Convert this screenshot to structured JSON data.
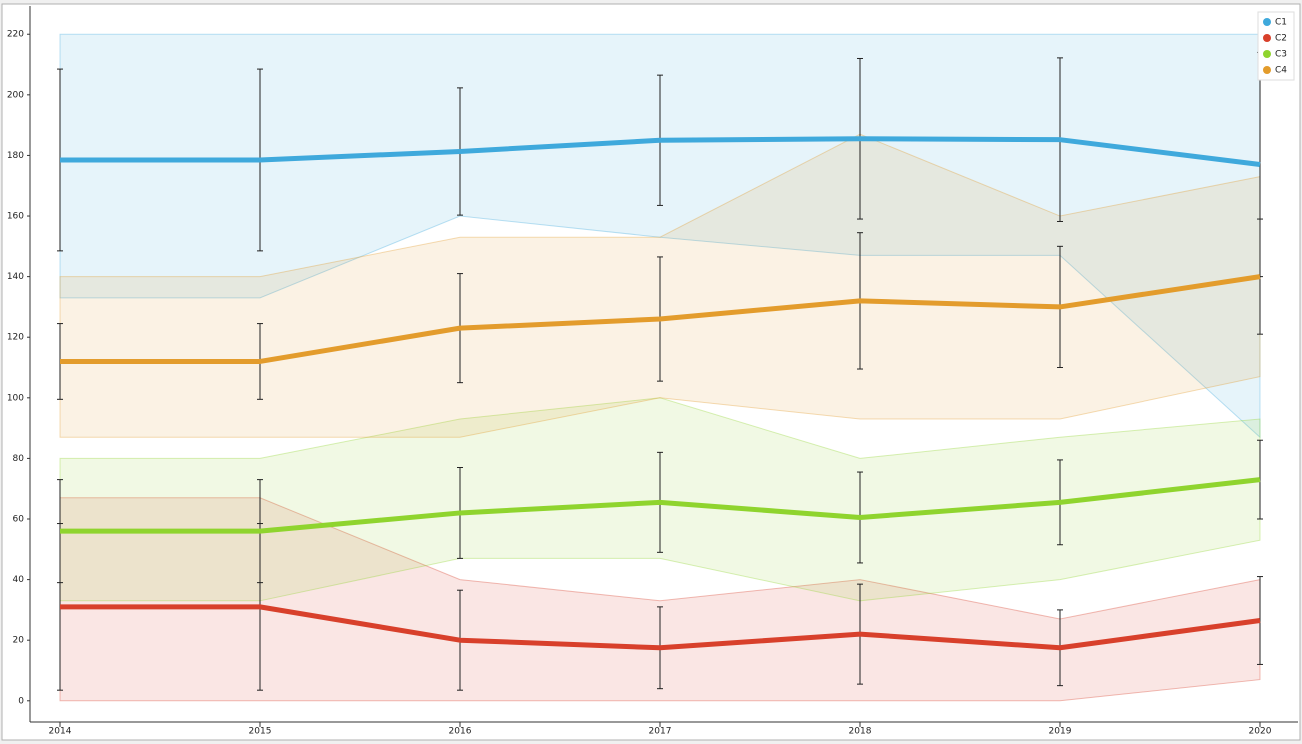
{
  "chart_data": {
    "type": "line",
    "x": [
      2014,
      2015,
      2016,
      2017,
      2018,
      2019,
      2020
    ],
    "xlim": [
      2013.85,
      2020.19
    ],
    "xticks": [
      2014,
      2015,
      2016,
      2017,
      2018,
      2019,
      2020
    ],
    "ylim": [
      -7,
      228
    ],
    "yticks": [
      0,
      20,
      40,
      60,
      80,
      100,
      120,
      140,
      160,
      180,
      200,
      220
    ],
    "legend": "upper right",
    "series": [
      {
        "name": "C1",
        "color": "#3fa9dc",
        "values": [
          178.5,
          178.5,
          181.3,
          185,
          185.5,
          185.2,
          177
        ],
        "errors": [
          30,
          30,
          21,
          21.5,
          26.5,
          27,
          37
        ],
        "band_low": [
          133,
          133,
          160,
          153,
          147,
          147,
          87
        ],
        "band_high": [
          220,
          220,
          220,
          220,
          220,
          220,
          220
        ]
      },
      {
        "name": "C2",
        "color": "#d8402b",
        "values": [
          31,
          31,
          20,
          17.5,
          22,
          17.5,
          26.5
        ],
        "errors": [
          27.5,
          27.5,
          16.5,
          13.5,
          16.5,
          12.5,
          14.5
        ],
        "band_low": [
          0,
          0,
          0,
          0,
          0,
          0,
          7
        ],
        "band_high": [
          67,
          67,
          40,
          33,
          40,
          27,
          40
        ]
      },
      {
        "name": "C3",
        "color": "#8fd42e",
        "values": [
          56,
          56,
          62,
          65.5,
          60.5,
          65.5,
          73
        ],
        "errors": [
          17,
          17,
          15,
          16.5,
          15,
          14,
          13
        ],
        "band_low": [
          33,
          33,
          47,
          47,
          33,
          40,
          53
        ],
        "band_high": [
          80,
          80,
          93,
          100,
          80,
          87,
          93
        ]
      },
      {
        "name": "C4",
        "color": "#e39c2c",
        "values": [
          112,
          112,
          123,
          126,
          132,
          130,
          140
        ],
        "errors": [
          12.5,
          12.5,
          18,
          20.5,
          22.5,
          20,
          19
        ],
        "band_low": [
          87,
          87,
          87,
          100,
          93,
          93,
          107
        ],
        "band_high": [
          140,
          140,
          153,
          153,
          187,
          160,
          173
        ]
      }
    ]
  }
}
